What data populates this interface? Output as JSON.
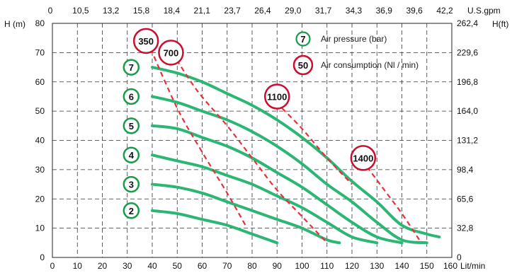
{
  "chart_data": {
    "type": "line",
    "title": "",
    "xlabel": "Lit/min",
    "x2label": "U.S.gpm",
    "ylabel": "H (m)",
    "y2label": "H(ft)",
    "xlim": [
      0,
      160
    ],
    "ylim": [
      0,
      80
    ],
    "grid": true,
    "x_ticks": [
      0,
      10,
      20,
      30,
      40,
      50,
      60,
      70,
      80,
      90,
      100,
      110,
      120,
      130,
      140,
      150,
      160
    ],
    "x_tick_labels": [
      "0",
      "10",
      "20",
      "30",
      "40",
      "50",
      "60",
      "70",
      "80",
      "90",
      "100",
      "110",
      "120",
      "130",
      "140",
      "150",
      "160"
    ],
    "x2_tick_labels": [
      "0",
      "10,5",
      "13,2",
      "15,8",
      "18,4",
      "21,1",
      "23,7",
      "26,4",
      "29,0",
      "31,7",
      "34,3",
      "36,9",
      "39,6",
      "42,2"
    ],
    "y_ticks": [
      0,
      10,
      20,
      30,
      40,
      50,
      60,
      70,
      80
    ],
    "y_tick_labels": [
      "0",
      "10",
      "20",
      "30",
      "40",
      "50",
      "60",
      "70",
      "80"
    ],
    "y2_tick_labels": [
      "0",
      "32,8",
      "65,6",
      "98,4",
      "131,2",
      "164,0",
      "196,8",
      "229,6",
      "262,4"
    ],
    "legend": {
      "position": "top-right",
      "items": [
        {
          "symbol": "7",
          "label": "Air pressure (bar)",
          "color": "#1a9a4a"
        },
        {
          "symbol": "50",
          "label": "Air consumption (Nl / min)",
          "color": "#c8102e"
        }
      ]
    },
    "series": [
      {
        "name": "7",
        "color": "#2bb673",
        "x": [
          40,
          50,
          60,
          70,
          80,
          90,
          100,
          110,
          120,
          130,
          140,
          150,
          155
        ],
        "y": [
          65,
          63,
          60,
          56,
          52,
          47,
          41,
          34,
          26,
          19,
          11,
          8,
          7
        ]
      },
      {
        "name": "6",
        "color": "#2bb673",
        "x": [
          40,
          50,
          60,
          70,
          80,
          90,
          100,
          110,
          120,
          130,
          140,
          150
        ],
        "y": [
          55,
          53,
          50,
          47,
          43,
          38,
          32,
          25,
          19,
          12,
          6,
          5
        ]
      },
      {
        "name": "5",
        "color": "#2bb673",
        "x": [
          40,
          50,
          60,
          70,
          80,
          90,
          100,
          110,
          120,
          130,
          140
        ],
        "y": [
          45,
          44,
          41,
          38,
          34,
          29,
          24,
          18,
          12,
          7,
          5
        ]
      },
      {
        "name": "4",
        "color": "#2bb673",
        "x": [
          40,
          50,
          60,
          70,
          80,
          90,
          100,
          110,
          120,
          130
        ],
        "y": [
          35,
          33,
          31,
          28,
          25,
          21,
          17,
          12,
          7,
          5
        ]
      },
      {
        "name": "3",
        "color": "#2bb673",
        "x": [
          40,
          50,
          60,
          70,
          80,
          90,
          100,
          110,
          115
        ],
        "y": [
          25,
          24,
          22,
          19,
          16,
          13,
          10,
          6,
          5
        ]
      },
      {
        "name": "2",
        "color": "#2bb673",
        "x": [
          40,
          50,
          60,
          70,
          80,
          90
        ],
        "y": [
          16,
          15,
          13,
          11,
          8,
          5
        ]
      }
    ],
    "consumption_lines": [
      {
        "name": "350",
        "color": "#e8303a",
        "x": [
          38,
          50,
          60,
          70,
          78
        ],
        "y": [
          74,
          51,
          36,
          22,
          10
        ]
      },
      {
        "name": "700",
        "color": "#e8303a",
        "x": [
          48,
          58,
          70,
          80,
          90,
          100,
          110
        ],
        "y": [
          70,
          57,
          45,
          34,
          23,
          14,
          5
        ]
      },
      {
        "name": "1100",
        "color": "#e8303a",
        "x": [
          92,
          100,
          110,
          120
        ],
        "y": [
          51,
          44,
          34,
          25
        ]
      },
      {
        "name": "1400",
        "color": "#e8303a",
        "x": [
          126,
          133,
          140,
          147
        ],
        "y": [
          31,
          23,
          15,
          6
        ]
      }
    ],
    "pressure_markers": [
      {
        "label": "7",
        "x": 33,
        "y": 65
      },
      {
        "label": "6",
        "x": 33,
        "y": 55
      },
      {
        "label": "5",
        "x": 33,
        "y": 45
      },
      {
        "label": "4",
        "x": 33,
        "y": 35
      },
      {
        "label": "3",
        "x": 33,
        "y": 25
      },
      {
        "label": "2",
        "x": 33,
        "y": 16
      }
    ],
    "consumption_markers": [
      {
        "label": "350",
        "x": 37.5,
        "y": 74
      },
      {
        "label": "700",
        "x": 47.5,
        "y": 70
      },
      {
        "label": "1100",
        "x": 90,
        "y": 55
      },
      {
        "label": "1400",
        "x": 124.5,
        "y": 34
      }
    ]
  }
}
